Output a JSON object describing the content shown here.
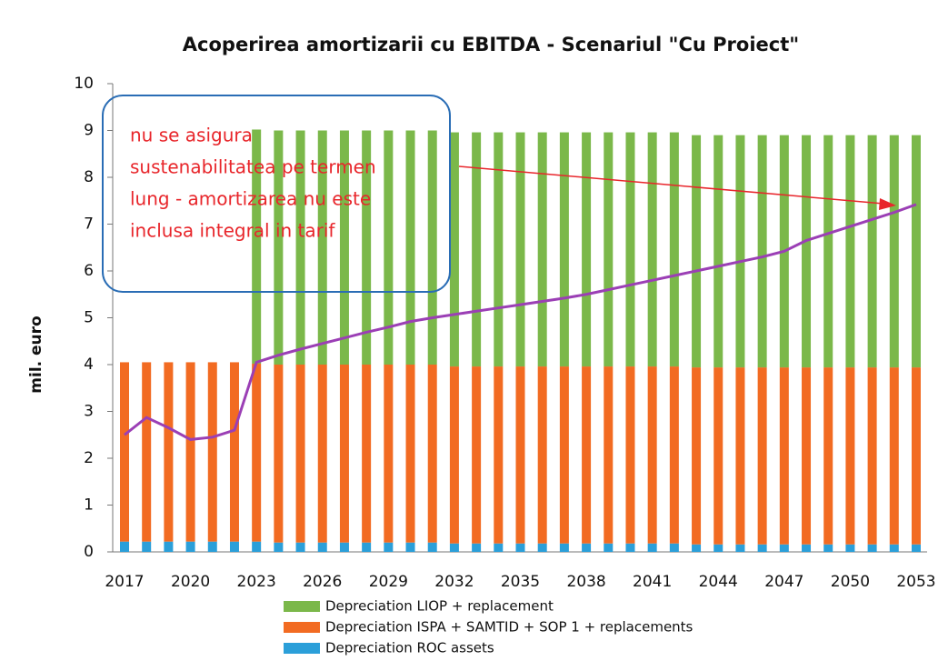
{
  "chart_data": {
    "type": "bar",
    "stacked": true,
    "title": "Acoperirea amortizarii cu EBITDA - Scenariul \"Cu Proiect\"",
    "y_label": "mil. euro",
    "categories": [
      "2017",
      null,
      null,
      "2020",
      null,
      null,
      "2023",
      null,
      null,
      "2026",
      null,
      null,
      "2029",
      null,
      null,
      "2032",
      null,
      null,
      "2035",
      null,
      null,
      "2038",
      null,
      null,
      "2041",
      null,
      null,
      "2044",
      null,
      null,
      "2047",
      null,
      null,
      "2050",
      null,
      null,
      "2053"
    ],
    "ylim": [
      0,
      10
    ],
    "yticks": [
      0,
      1,
      2,
      3,
      4,
      5,
      6,
      7,
      8,
      9,
      10
    ],
    "grid": false,
    "series": [
      {
        "name": "Depreciation ROC  assets",
        "color": "#2b9fd9",
        "values": [
          0.22,
          0.22,
          0.22,
          0.22,
          0.22,
          0.22,
          0.22,
          0.2,
          0.2,
          0.2,
          0.2,
          0.2,
          0.2,
          0.2,
          0.2,
          0.18,
          0.18,
          0.18,
          0.18,
          0.18,
          0.18,
          0.18,
          0.18,
          0.18,
          0.18,
          0.18,
          0.16,
          0.16,
          0.16,
          0.16,
          0.16,
          0.16,
          0.16,
          0.16,
          0.16,
          0.16,
          0.16
        ]
      },
      {
        "name": "Depreciation ISPA + SAMTID + SOP 1 + replacements",
        "color": "#f26b22",
        "values": [
          3.83,
          3.83,
          3.83,
          3.83,
          3.83,
          3.83,
          3.8,
          3.8,
          3.8,
          3.8,
          3.8,
          3.8,
          3.8,
          3.8,
          3.8,
          3.78,
          3.78,
          3.78,
          3.78,
          3.78,
          3.78,
          3.78,
          3.78,
          3.78,
          3.78,
          3.78,
          3.78,
          3.78,
          3.78,
          3.78,
          3.78,
          3.78,
          3.78,
          3.78,
          3.78,
          3.78,
          3.78
        ]
      },
      {
        "name": "Depreciation LIOP + replacement",
        "color": "#7bb84a",
        "values": [
          0,
          0,
          0,
          0,
          0,
          0,
          5.0,
          5.0,
          5.0,
          5.0,
          5.0,
          5.0,
          5.0,
          5.0,
          5.0,
          5.0,
          5.0,
          5.0,
          5.0,
          5.0,
          5.0,
          5.0,
          5.0,
          5.0,
          5.0,
          5.0,
          4.96,
          4.96,
          4.96,
          4.96,
          4.96,
          4.96,
          4.96,
          4.96,
          4.96,
          4.96,
          4.96
        ]
      },
      {
        "type": "line",
        "color": "#9b3fb5",
        "values": [
          2.5,
          2.87,
          2.65,
          2.4,
          2.45,
          2.6,
          4.05,
          4.2,
          4.33,
          4.45,
          4.57,
          4.69,
          4.8,
          4.92,
          5.0,
          5.07,
          5.14,
          5.21,
          5.28,
          5.35,
          5.42,
          5.5,
          5.6,
          5.7,
          5.8,
          5.9,
          6.0,
          6.1,
          6.2,
          6.3,
          6.42,
          6.65,
          6.8,
          6.95,
          7.1,
          7.25,
          7.42
        ]
      }
    ],
    "annotation": {
      "lines": [
        "nu se asigura",
        "sustenabilitatea pe termen",
        "lung - amortizarea nu este",
        "inclusa integral in tarif"
      ],
      "color": "#e8262b"
    }
  }
}
